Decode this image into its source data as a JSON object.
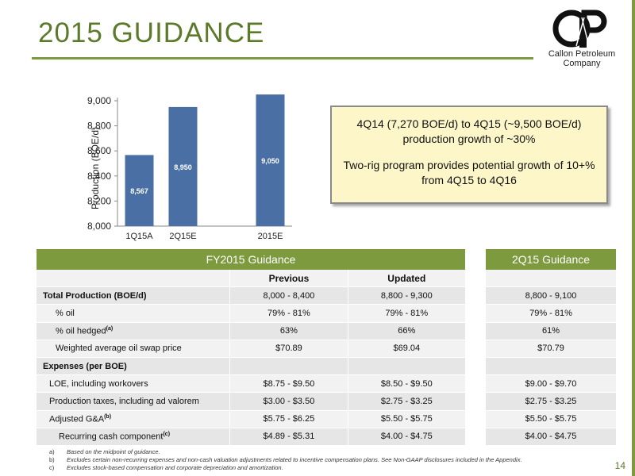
{
  "title": "2015 GUIDANCE",
  "logo": {
    "line1": "Callon Petroleum",
    "line2": "Company"
  },
  "chart_data": {
    "type": "bar",
    "categories": [
      "1Q15A",
      "2Q15E",
      "",
      "2015E"
    ],
    "values": [
      8567,
      8950,
      null,
      9050
    ],
    "data_labels": [
      "8,567",
      "8,950",
      "",
      "9,050"
    ],
    "ylabel": "Production (BOE/d)",
    "ylim": [
      8000,
      9000
    ],
    "yticks": [
      "8,000",
      "8,200",
      "8,400",
      "8,600",
      "8,800",
      "9,000"
    ],
    "bar_color": "#4a6fa5"
  },
  "callout": {
    "line1": "4Q14 (7,270 BOE/d) to 4Q15 (~9,500 BOE/d) production growth of ~30%",
    "line2": "Two-rig program provides potential growth of 10+% from 4Q15 to 4Q16"
  },
  "fy_table": {
    "header": "FY2015 Guidance",
    "col_previous": "Previous",
    "col_updated": "Updated",
    "rows": [
      {
        "label": "Total Production (BOE/d)",
        "prev": "8,000 - 8,400",
        "upd": "8,800 - 9,300"
      },
      {
        "label": "% oil",
        "prev": "79% - 81%",
        "upd": "79% - 81%"
      },
      {
        "label": "% oil hedged",
        "sup": "(a)",
        "prev": "63%",
        "upd": "66%"
      },
      {
        "label": "Weighted average oil swap price",
        "prev": "$70.89",
        "upd": "$69.04"
      },
      {
        "label": "Expenses (per BOE)",
        "prev": "",
        "upd": ""
      },
      {
        "label": "LOE, including workovers",
        "prev": "$8.75 - $9.50",
        "upd": "$8.50 - $9.50"
      },
      {
        "label": "Production taxes, including ad valorem",
        "prev": "$3.00 - $3.50",
        "upd": "$2.75 - $3.25"
      },
      {
        "label": "Adjusted G&A",
        "sup": "(b)",
        "prev": "$5.75 - $6.25",
        "upd": "$5.50 - $5.75"
      },
      {
        "label": "Recurring cash component",
        "sup": "(c)",
        "prev": "$4.89 - $5.31",
        "upd": "$4.00 - $4.75"
      }
    ]
  },
  "q2_table": {
    "header": "2Q15 Guidance",
    "values": [
      "8,800 - 9,100",
      "79% - 81%",
      "61%",
      "$70.79",
      "",
      "$9.00 - $9.70",
      "$2.75 - $3.25",
      "$5.50 - $5.75",
      "$4.00 - $4.75"
    ]
  },
  "footnotes": [
    {
      "label": "a)",
      "text": "Based on the midpoint of guidance."
    },
    {
      "label": "b)",
      "text": "Excludes certain non-recurring expenses and non-cash valuation adjustments related to incentive compensation plans. See Non-GAAP disclosures included in the Appendix."
    },
    {
      "label": "c)",
      "text": "Excludes stock-based compensation and corporate depreciation and amortization."
    }
  ],
  "page_number": "14"
}
